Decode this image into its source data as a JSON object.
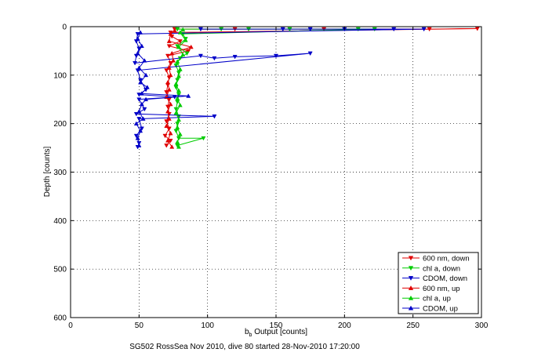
{
  "chart_data": {
    "type": "scatter",
    "xlabel_main": "b",
    "xlabel_sub": "b",
    "xlabel_rest": " Output [counts]",
    "ylabel": "Depth [counts]",
    "caption": "SG502 RossSea Nov 2010, dive 80 started 28-Nov-2010 17:20:00",
    "xlim": [
      0,
      300
    ],
    "ylim": [
      0,
      600
    ],
    "y_reversed": true,
    "xticks": [
      0,
      50,
      100,
      150,
      200,
      250,
      300
    ],
    "yticks": [
      0,
      100,
      200,
      300,
      400,
      500,
      600
    ],
    "grid": true,
    "legend_position": "bottom-right",
    "series": [
      {
        "name": "600 nm, down",
        "color": "#e00000",
        "marker": "triangle-down",
        "points": [
          [
            76,
            5
          ],
          [
            120,
            5
          ],
          [
            185,
            5
          ],
          [
            262,
            5
          ],
          [
            297,
            4
          ],
          [
            73,
            12
          ],
          [
            74,
            20
          ],
          [
            80,
            30
          ],
          [
            72,
            40
          ],
          [
            86,
            50
          ],
          [
            71,
            60
          ],
          [
            73,
            75
          ],
          [
            70,
            90
          ],
          [
            72,
            105
          ],
          [
            71,
            120
          ],
          [
            70,
            135
          ],
          [
            72,
            150
          ],
          [
            71,
            165
          ],
          [
            72,
            180
          ],
          [
            70,
            195
          ],
          [
            72,
            210
          ],
          [
            69,
            225
          ],
          [
            73,
            235
          ],
          [
            70,
            245
          ]
        ]
      },
      {
        "name": "chl a, down",
        "color": "#00cc00",
        "marker": "triangle-down",
        "points": [
          [
            78,
            5
          ],
          [
            110,
            5
          ],
          [
            130,
            5
          ],
          [
            160,
            5
          ],
          [
            210,
            5
          ],
          [
            222,
            5
          ],
          [
            82,
            15
          ],
          [
            84,
            25
          ],
          [
            78,
            40
          ],
          [
            85,
            55
          ],
          [
            80,
            65
          ],
          [
            77,
            80
          ],
          [
            79,
            95
          ],
          [
            78,
            110
          ],
          [
            77,
            125
          ],
          [
            79,
            140
          ],
          [
            78,
            155
          ],
          [
            77,
            170
          ],
          [
            79,
            185
          ],
          [
            78,
            200
          ],
          [
            77,
            215
          ],
          [
            79,
            230
          ],
          [
            97,
            230
          ],
          [
            78,
            245
          ]
        ]
      },
      {
        "name": "CDOM, down",
        "color": "#0000c8",
        "marker": "triangle-down",
        "points": [
          [
            95,
            5
          ],
          [
            155,
            5
          ],
          [
            175,
            5
          ],
          [
            200,
            5
          ],
          [
            236,
            5
          ],
          [
            258,
            5
          ],
          [
            49,
            15
          ],
          [
            48,
            30
          ],
          [
            50,
            45
          ],
          [
            48,
            60
          ],
          [
            47,
            75
          ],
          [
            95,
            60
          ],
          [
            105,
            65
          ],
          [
            120,
            62
          ],
          [
            150,
            60
          ],
          [
            175,
            55
          ],
          [
            49,
            90
          ],
          [
            51,
            110
          ],
          [
            55,
            130
          ],
          [
            50,
            140
          ],
          [
            76,
            145
          ],
          [
            50,
            150
          ],
          [
            54,
            170
          ],
          [
            48,
            180
          ],
          [
            105,
            185
          ],
          [
            50,
            190
          ],
          [
            52,
            210
          ],
          [
            48,
            225
          ],
          [
            50,
            240
          ],
          [
            49,
            248
          ]
        ]
      },
      {
        "name": "600 nm, up",
        "color": "#e00000",
        "marker": "triangle-up",
        "points": [
          [
            74,
            248
          ],
          [
            71,
            235
          ],
          [
            73,
            220
          ],
          [
            70,
            205
          ],
          [
            72,
            190
          ],
          [
            71,
            175
          ],
          [
            73,
            160
          ],
          [
            70,
            145
          ],
          [
            72,
            130
          ],
          [
            71,
            115
          ],
          [
            73,
            100
          ],
          [
            72,
            85
          ],
          [
            75,
            70
          ],
          [
            74,
            55
          ],
          [
            88,
            42
          ],
          [
            72,
            30
          ],
          [
            73,
            15
          ],
          [
            76,
            8
          ]
        ]
      },
      {
        "name": "chl a, up",
        "color": "#00cc00",
        "marker": "triangle-up",
        "points": [
          [
            79,
            248
          ],
          [
            78,
            238
          ],
          [
            80,
            222
          ],
          [
            78,
            208
          ],
          [
            79,
            192
          ],
          [
            77,
            178
          ],
          [
            80,
            162
          ],
          [
            78,
            148
          ],
          [
            79,
            132
          ],
          [
            77,
            118
          ],
          [
            79,
            102
          ],
          [
            80,
            88
          ],
          [
            78,
            72
          ],
          [
            82,
            58
          ],
          [
            79,
            42
          ],
          [
            84,
            28
          ],
          [
            80,
            12
          ],
          [
            82,
            6
          ]
        ]
      },
      {
        "name": "CDOM, up",
        "color": "#0000c8",
        "marker": "triangle-up",
        "points": [
          [
            50,
            245
          ],
          [
            49,
            230
          ],
          [
            51,
            215
          ],
          [
            48,
            200
          ],
          [
            53,
            190
          ],
          [
            50,
            175
          ],
          [
            52,
            160
          ],
          [
            55,
            150
          ],
          [
            86,
            143
          ],
          [
            52,
            138
          ],
          [
            56,
            125
          ],
          [
            51,
            115
          ],
          [
            55,
            100
          ],
          [
            50,
            85
          ],
          [
            54,
            70
          ],
          [
            49,
            55
          ],
          [
            52,
            40
          ],
          [
            49,
            25
          ],
          [
            51,
            12
          ]
        ]
      }
    ]
  }
}
